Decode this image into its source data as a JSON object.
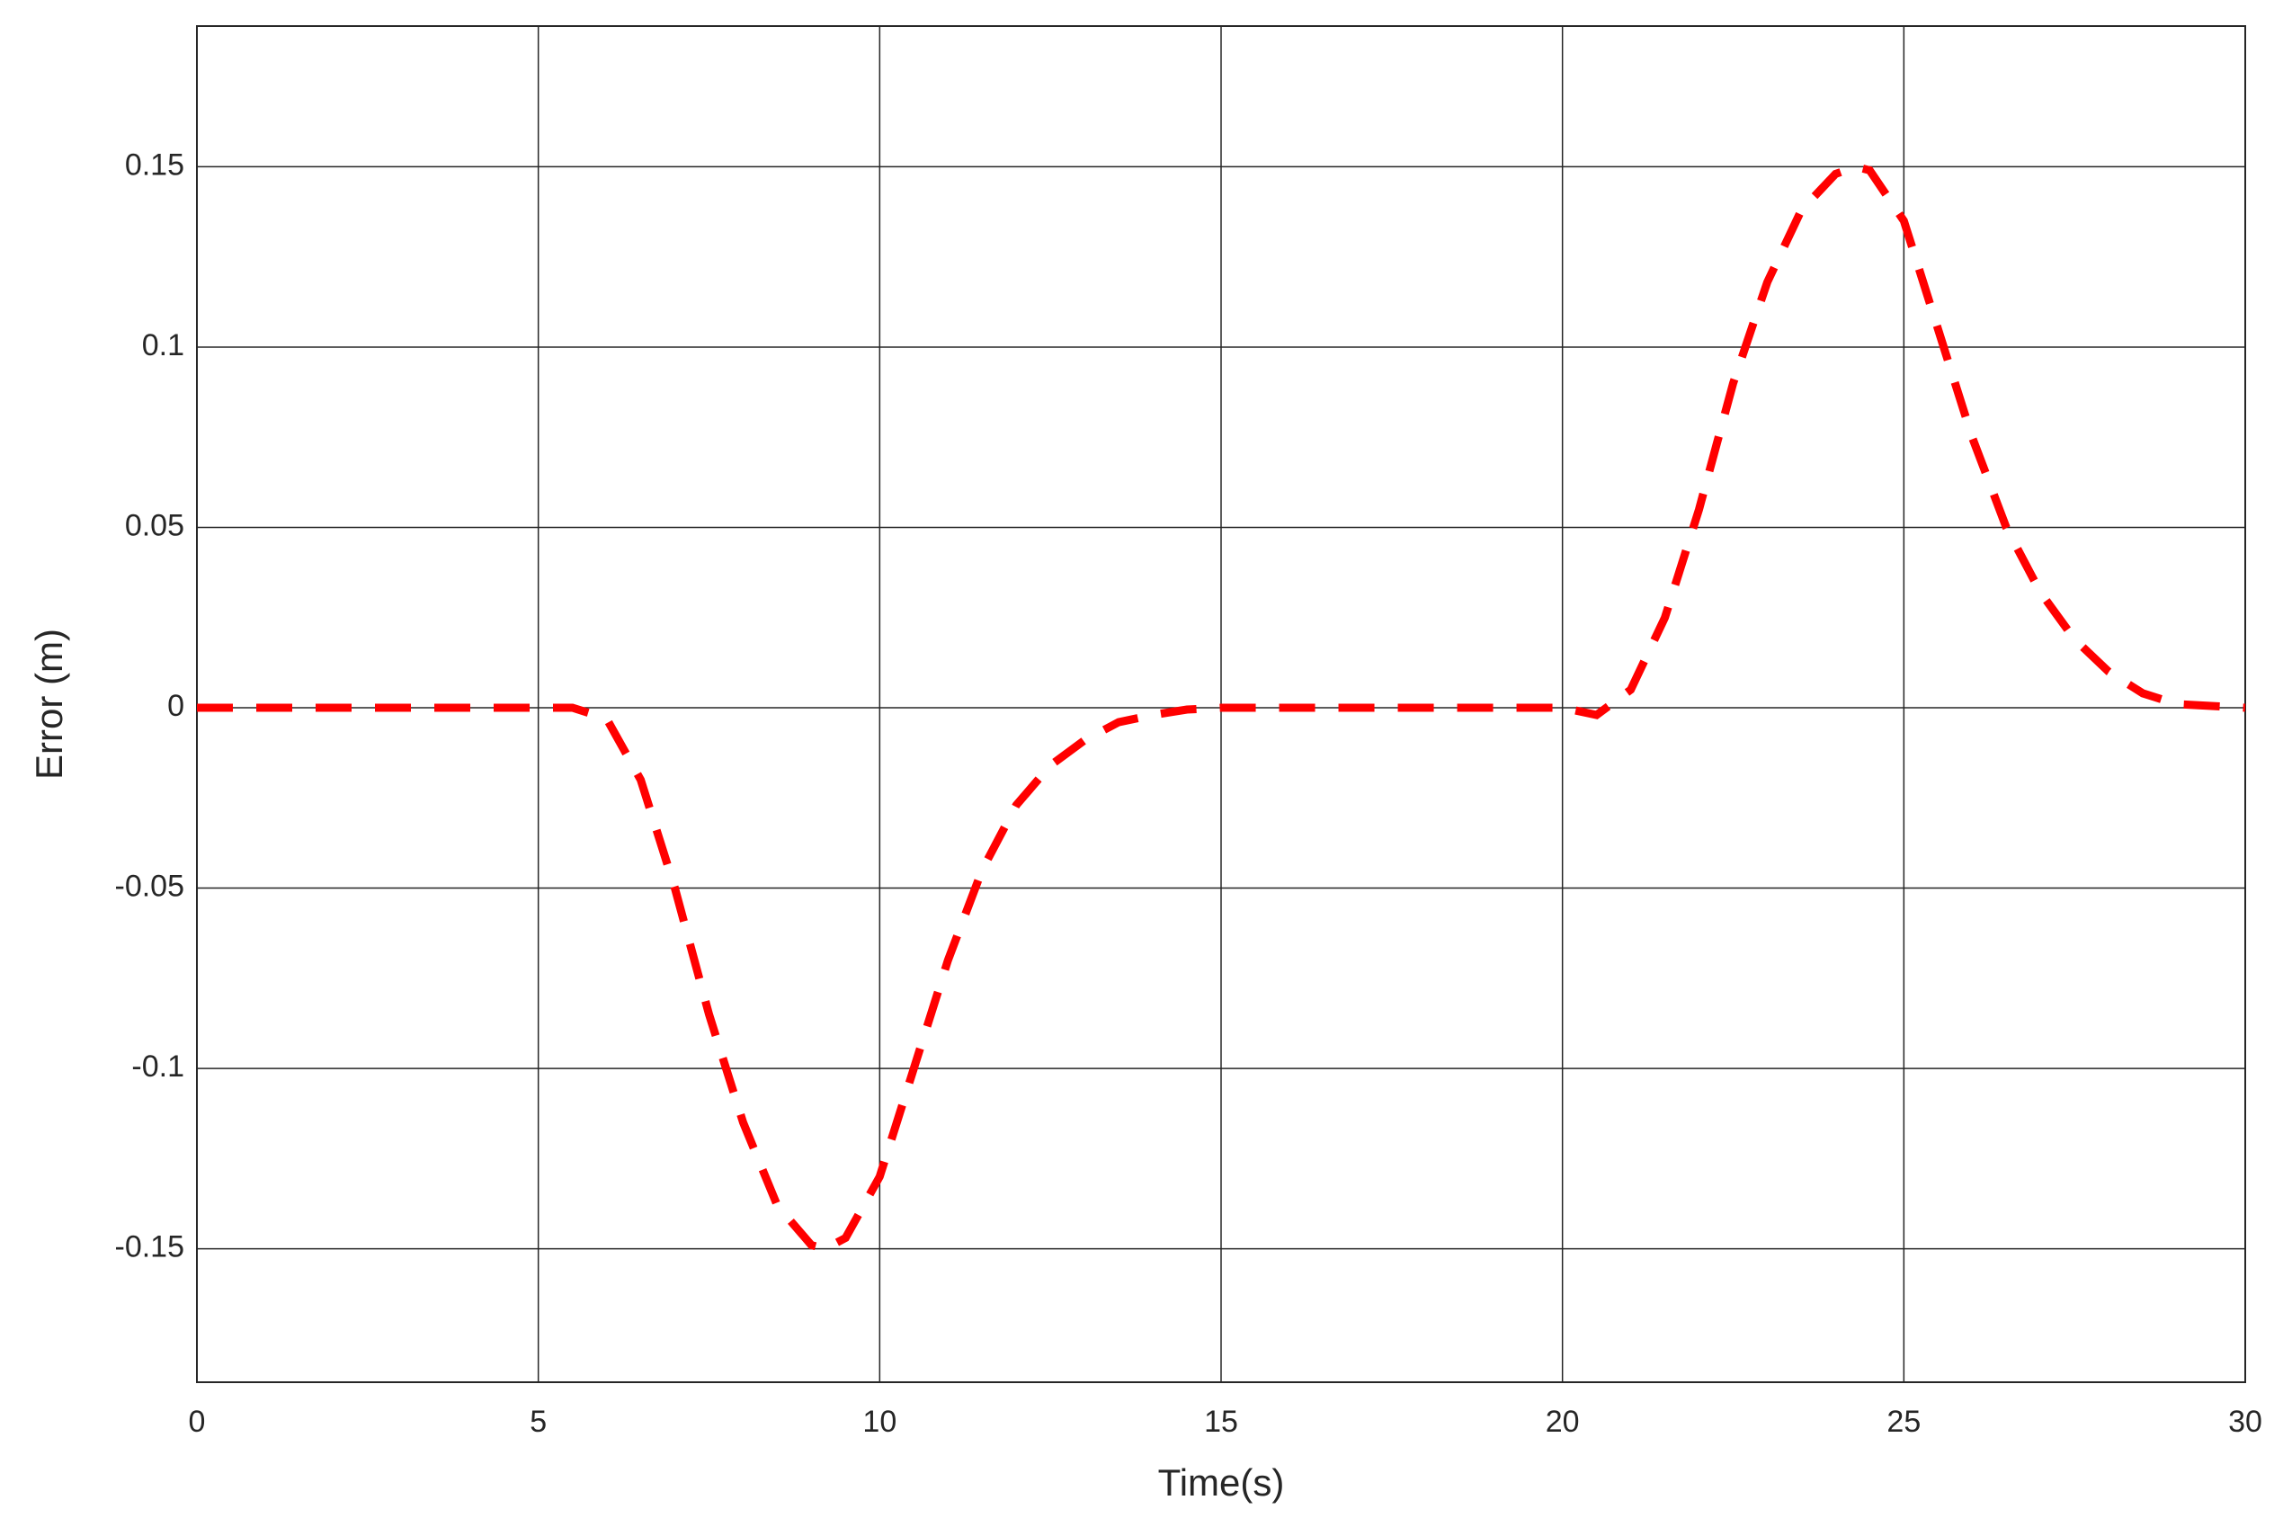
{
  "chart_data": {
    "type": "line",
    "xlabel": "Time(s)",
    "ylabel": "Error (m)",
    "x": [
      0,
      1,
      2,
      3,
      4,
      5,
      5.5,
      6,
      6.5,
      7,
      7.5,
      8,
      8.5,
      9,
      9.2,
      9.5,
      10,
      10.5,
      11,
      11.5,
      12,
      12.5,
      13,
      13.5,
      14,
      14.5,
      15,
      16,
      17,
      18,
      19,
      20,
      20.5,
      21,
      21.5,
      22,
      22.5,
      23,
      23.5,
      24,
      24.3,
      24.5,
      25,
      25.5,
      26,
      26.5,
      27,
      27.5,
      28,
      28.5,
      29,
      30
    ],
    "series": [
      {
        "color": "#ff0000",
        "values": [
          0,
          0,
          0,
          0,
          0,
          0,
          0,
          -0.003,
          -0.02,
          -0.05,
          -0.085,
          -0.115,
          -0.138,
          -0.149,
          -0.15,
          -0.147,
          -0.13,
          -0.1,
          -0.07,
          -0.045,
          -0.027,
          -0.016,
          -0.009,
          -0.004,
          -0.002,
          -0.0005,
          0,
          0,
          0,
          0,
          0,
          0,
          -0.002,
          0.005,
          0.025,
          0.055,
          0.09,
          0.118,
          0.138,
          0.148,
          0.15,
          0.149,
          0.135,
          0.105,
          0.075,
          0.05,
          0.032,
          0.019,
          0.01,
          0.004,
          0.001,
          0
        ]
      }
    ],
    "xlim": [
      0,
      30
    ],
    "xticks": [
      0,
      5,
      10,
      15,
      20,
      25,
      30
    ],
    "ylim": [
      -0.187,
      0.189
    ],
    "yticks": [
      -0.15,
      -0.1,
      -0.05,
      0,
      0.05,
      0.1,
      0.15
    ],
    "grid": true
  }
}
